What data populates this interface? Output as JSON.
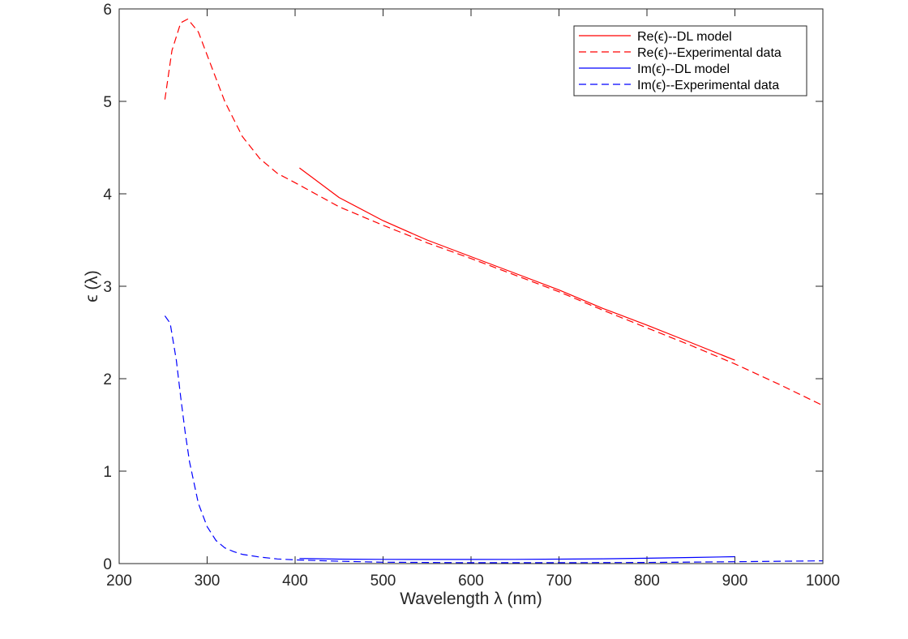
{
  "chart_data": {
    "type": "line",
    "title": "",
    "xlabel": "Wavelength λ (nm)",
    "ylabel": "ϵ (λ)",
    "xlim": [
      200,
      1000
    ],
    "ylim": [
      0,
      6
    ],
    "xticks": [
      200,
      300,
      400,
      500,
      600,
      700,
      800,
      900,
      1000
    ],
    "yticks": [
      0,
      1,
      2,
      3,
      4,
      5,
      6
    ],
    "xtick_labels": [
      "200",
      "300",
      "400",
      "500",
      "600",
      "700",
      "800",
      "900",
      "1000"
    ],
    "ytick_labels": [
      "0",
      "1",
      "2",
      "3",
      "4",
      "5",
      "6"
    ],
    "grid": false,
    "legend_position": "top-right",
    "series": [
      {
        "name": "Re(ϵ)--DL model",
        "color": "#ff0000",
        "dash": "solid",
        "x": [
          405,
          450,
          500,
          550,
          600,
          650,
          700,
          750,
          800,
          850,
          900
        ],
        "y": [
          4.28,
          3.96,
          3.71,
          3.5,
          3.32,
          3.14,
          2.96,
          2.76,
          2.58,
          2.39,
          2.2
        ]
      },
      {
        "name": "Re(ϵ)--Experimental data",
        "color": "#ff0000",
        "dash": "dashed",
        "x": [
          252,
          260,
          270,
          278,
          290,
          300,
          320,
          340,
          360,
          380,
          400,
          450,
          500,
          550,
          600,
          650,
          700,
          750,
          800,
          850,
          900,
          950,
          1000
        ],
        "y": [
          5.02,
          5.55,
          5.85,
          5.89,
          5.75,
          5.5,
          5.0,
          4.62,
          4.38,
          4.22,
          4.12,
          3.86,
          3.66,
          3.47,
          3.3,
          3.12,
          2.94,
          2.74,
          2.55,
          2.36,
          2.16,
          1.94,
          1.71
        ]
      },
      {
        "name": "Im(ϵ)--DL model",
        "color": "#0000ff",
        "dash": "solid",
        "x": [
          405,
          450,
          500,
          550,
          600,
          650,
          700,
          750,
          800,
          850,
          900
        ],
        "y": [
          0.055,
          0.048,
          0.046,
          0.045,
          0.045,
          0.046,
          0.048,
          0.052,
          0.058,
          0.066,
          0.075
        ]
      },
      {
        "name": "Im(ϵ)--Experimental data",
        "color": "#0000ff",
        "dash": "dashed",
        "x": [
          252,
          258,
          265,
          270,
          275,
          280,
          290,
          300,
          310,
          320,
          330,
          340,
          360,
          380,
          400,
          450,
          500,
          600,
          700,
          800,
          900,
          1000
        ],
        "y": [
          2.68,
          2.6,
          2.2,
          1.8,
          1.42,
          1.1,
          0.65,
          0.4,
          0.25,
          0.17,
          0.13,
          0.1,
          0.07,
          0.05,
          0.04,
          0.025,
          0.015,
          0.01,
          0.01,
          0.012,
          0.02,
          0.03
        ]
      }
    ]
  }
}
